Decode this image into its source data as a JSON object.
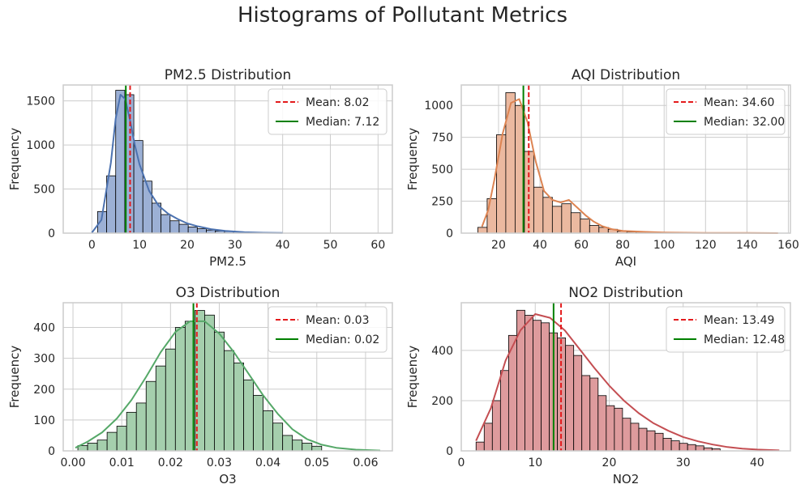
{
  "figure": {
    "title": "Histograms of Pollutant Metrics"
  },
  "chart_data": [
    {
      "type": "bar",
      "title": "PM2.5 Distribution",
      "xlabel": "PM2.5",
      "ylabel": "Frequency",
      "xlim": [
        -6,
        63
      ],
      "ylim": [
        0,
        1680
      ],
      "xticks": [
        0,
        10,
        20,
        30,
        40,
        50,
        60
      ],
      "yticks": [
        0,
        500,
        1000,
        1500
      ],
      "xtick_labels": [
        "0",
        "10",
        "20",
        "30",
        "40",
        "50",
        "60"
      ],
      "ytick_labels": [
        "0",
        "500",
        "1000",
        "1500"
      ],
      "bin_edges": [
        1.2,
        3.1,
        5.0,
        6.9,
        8.8,
        10.7,
        12.6,
        14.5,
        16.4,
        18.3,
        20.2,
        22.1,
        24.0,
        25.9,
        27.8,
        29.7,
        31.6,
        33.5
      ],
      "counts": [
        245,
        650,
        1620,
        1570,
        1050,
        590,
        340,
        210,
        140,
        100,
        70,
        50,
        35,
        25,
        20,
        15,
        10
      ],
      "kde": {
        "x": [
          0,
          2,
          4,
          5,
          6,
          7,
          8,
          9,
          10,
          12,
          14,
          16,
          18,
          20,
          22,
          25,
          28,
          32,
          36,
          40
        ],
        "y": [
          5,
          150,
          800,
          1300,
          1570,
          1520,
          1280,
          1000,
          780,
          480,
          310,
          220,
          160,
          110,
          80,
          45,
          25,
          10,
          5,
          2
        ]
      },
      "color": "#4c72b0",
      "fill": "#9cb0d5",
      "lines": [
        {
          "label": "Mean: 8.02",
          "value": 8.02,
          "color": "#e41a1c",
          "dash": true
        },
        {
          "label": "Median: 7.12",
          "value": 7.12,
          "color": "#008000",
          "dash": false
        }
      ],
      "legend": "top-right",
      "grid": true
    },
    {
      "type": "bar",
      "title": "AQI Distribution",
      "xlabel": "AQI",
      "ylabel": "Frequency",
      "xlim": [
        2,
        161
      ],
      "ylim": [
        0,
        1160
      ],
      "xticks": [
        20,
        40,
        60,
        80,
        100,
        120,
        140,
        160
      ],
      "yticks": [
        0,
        250,
        500,
        750,
        1000
      ],
      "xtick_labels": [
        "20",
        "40",
        "60",
        "80",
        "100",
        "120",
        "140",
        "160"
      ],
      "ytick_labels": [
        "0",
        "250",
        "500",
        "750",
        "1000"
      ],
      "bin_edges": [
        10,
        14.5,
        19,
        23.5,
        28,
        32.5,
        37,
        41.5,
        46,
        50.5,
        55,
        59.5,
        64,
        68.5,
        73,
        77.5,
        82,
        86.5,
        91,
        95.5,
        100
      ],
      "counts": [
        45,
        270,
        770,
        1100,
        1000,
        640,
        360,
        280,
        210,
        230,
        160,
        110,
        60,
        45,
        30,
        15,
        10,
        8,
        5,
        3
      ],
      "kde": {
        "x": [
          12,
          15,
          18,
          22,
          26,
          30,
          34,
          38,
          42,
          46,
          50,
          54,
          58,
          62,
          66,
          70,
          75,
          80,
          90,
          100,
          120,
          140,
          155
        ],
        "y": [
          50,
          180,
          420,
          780,
          1020,
          1050,
          870,
          560,
          330,
          260,
          240,
          260,
          200,
          140,
          90,
          55,
          30,
          18,
          10,
          5,
          2,
          1,
          0
        ]
      },
      "color": "#dd8452",
      "fill": "#ebb9a0",
      "lines": [
        {
          "label": "Mean: 34.60",
          "value": 34.6,
          "color": "#e41a1c",
          "dash": true
        },
        {
          "label": "Median: 32.00",
          "value": 32.0,
          "color": "#008000",
          "dash": false
        }
      ],
      "legend": "top-right",
      "grid": true
    },
    {
      "type": "bar",
      "title": "O3 Distribution",
      "xlabel": "O3",
      "ylabel": "Frequency",
      "xlim": [
        -0.002,
        0.0655
      ],
      "ylim": [
        0,
        480
      ],
      "xticks": [
        0.0,
        0.01,
        0.02,
        0.03,
        0.04,
        0.05,
        0.06
      ],
      "yticks": [
        0,
        100,
        200,
        300,
        400
      ],
      "xtick_labels": [
        "0.00",
        "0.01",
        "0.02",
        "0.03",
        "0.04",
        "0.05",
        "0.06"
      ],
      "ytick_labels": [
        "0",
        "100",
        "200",
        "300",
        "400"
      ],
      "bin_edges": [
        0.001,
        0.003,
        0.005,
        0.007,
        0.009,
        0.011,
        0.013,
        0.015,
        0.017,
        0.019,
        0.021,
        0.023,
        0.025,
        0.027,
        0.029,
        0.031,
        0.033,
        0.035,
        0.037,
        0.039,
        0.041,
        0.043,
        0.045,
        0.047,
        0.049,
        0.051
      ],
      "counts": [
        17,
        25,
        35,
        60,
        80,
        125,
        155,
        225,
        275,
        330,
        400,
        420,
        455,
        440,
        385,
        325,
        285,
        230,
        180,
        130,
        90,
        50,
        35,
        25,
        15
      ],
      "kde": {
        "x": [
          0.0005,
          0.003,
          0.006,
          0.009,
          0.012,
          0.015,
          0.018,
          0.021,
          0.024,
          0.027,
          0.03,
          0.033,
          0.036,
          0.039,
          0.042,
          0.045,
          0.048,
          0.051,
          0.054,
          0.058,
          0.063
        ],
        "y": [
          10,
          30,
          60,
          105,
          165,
          240,
          320,
          385,
          420,
          420,
          380,
          320,
          250,
          180,
          120,
          70,
          38,
          20,
          10,
          4,
          1
        ]
      },
      "color": "#55a868",
      "fill": "#a5cfad",
      "lines": [
        {
          "label": "Mean: 0.03",
          "value": 0.0254,
          "color": "#e41a1c",
          "dash": true
        },
        {
          "label": "Median: 0.02",
          "value": 0.0247,
          "color": "#008000",
          "dash": false
        }
      ],
      "legend": "top-right",
      "grid": true
    },
    {
      "type": "bar",
      "title": "NO2 Distribution",
      "xlabel": "NO2",
      "ylabel": "Frequency",
      "xlim": [
        0,
        44.5
      ],
      "ylim": [
        0,
        590
      ],
      "xticks": [
        0,
        10,
        20,
        30,
        40
      ],
      "yticks": [
        0,
        200,
        400
      ],
      "xtick_labels": [
        "0",
        "10",
        "20",
        "30",
        "40"
      ],
      "ytick_labels": [
        "0",
        "200",
        "400"
      ],
      "bin_edges": [
        2.0,
        3.1,
        4.2,
        5.3,
        6.4,
        7.5,
        8.6,
        9.7,
        10.8,
        11.9,
        13.0,
        14.1,
        15.2,
        16.3,
        17.4,
        18.5,
        19.6,
        20.7,
        21.8,
        22.9,
        24.0,
        25.1,
        26.2,
        27.3,
        28.4,
        29.5,
        30.6,
        31.7,
        32.8,
        33.9,
        35.0
      ],
      "counts": [
        35,
        110,
        200,
        320,
        460,
        560,
        540,
        520,
        510,
        470,
        450,
        420,
        380,
        300,
        290,
        220,
        180,
        170,
        130,
        110,
        90,
        80,
        70,
        50,
        40,
        30,
        25,
        20,
        12,
        8
      ],
      "kde": {
        "x": [
          2,
          4,
          6,
          8,
          10,
          12,
          14,
          16,
          18,
          20,
          22,
          24,
          26,
          28,
          30,
          32,
          34,
          36,
          38,
          40,
          43
        ],
        "y": [
          40,
          170,
          360,
          480,
          545,
          530,
          480,
          405,
          330,
          260,
          200,
          150,
          110,
          80,
          55,
          38,
          25,
          15,
          9,
          5,
          2
        ]
      },
      "color": "#c44e52",
      "fill": "#de9b9d",
      "lines": [
        {
          "label": "Mean: 13.49",
          "value": 13.49,
          "color": "#e41a1c",
          "dash": true
        },
        {
          "label": "Median: 12.48",
          "value": 12.48,
          "color": "#008000",
          "dash": false
        }
      ],
      "legend": "top-right",
      "grid": true
    }
  ]
}
